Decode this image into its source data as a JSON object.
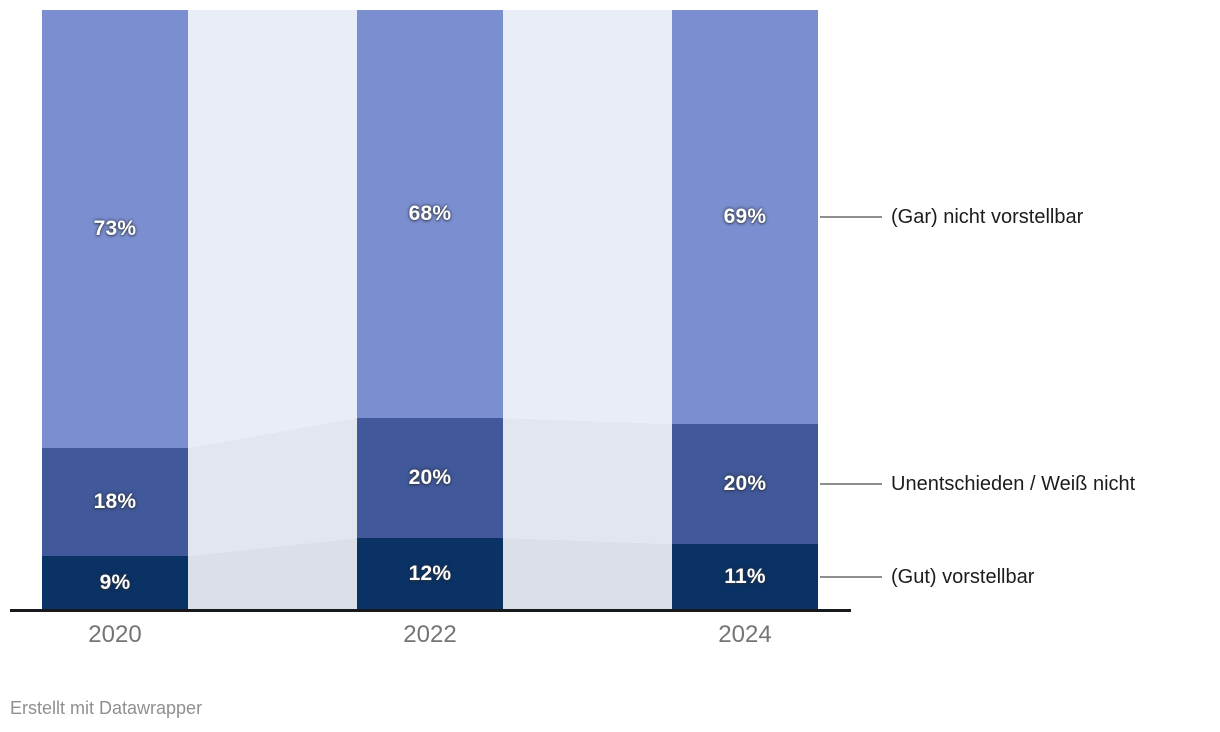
{
  "chart_data": {
    "type": "bar",
    "variant": "stacked-column-100-with-connectors",
    "title": "",
    "xlabel": "",
    "ylabel": "",
    "ylim": [
      0,
      100
    ],
    "value_suffix": "%",
    "grid": false,
    "legend_position": "right-annotations",
    "categories": [
      "2020",
      "2022",
      "2024"
    ],
    "series": [
      {
        "name": "(Gut) vorstellbar",
        "color": "#0b3264",
        "connector_color": "#dadfe8",
        "values": [
          9,
          12,
          11
        ],
        "labels": [
          "9%",
          "12%",
          "11%"
        ]
      },
      {
        "name": "Unentschieden / Weiß nicht",
        "color": "#41599a",
        "connector_color": "#e2e6ef",
        "values": [
          18,
          20,
          20
        ],
        "labels": [
          "18%",
          "20%",
          "20%"
        ]
      },
      {
        "name": "(Gar) nicht vorstellbar",
        "color": "#7b8fd0",
        "connector_color": "#e9edf8",
        "values": [
          73,
          68,
          69
        ],
        "labels": [
          "73%",
          "68%",
          "69%"
        ]
      }
    ]
  },
  "colors": {
    "background": "#ffffff",
    "axis_line": "#17191d",
    "tick_label": "#757575",
    "bar_label": "#ffffff",
    "annotation_text": "#1c1c1c",
    "leader_line": "#8e8e8e",
    "credit_text": "#909090"
  },
  "footer": {
    "credit": "Erstellt mit Datawrapper"
  }
}
